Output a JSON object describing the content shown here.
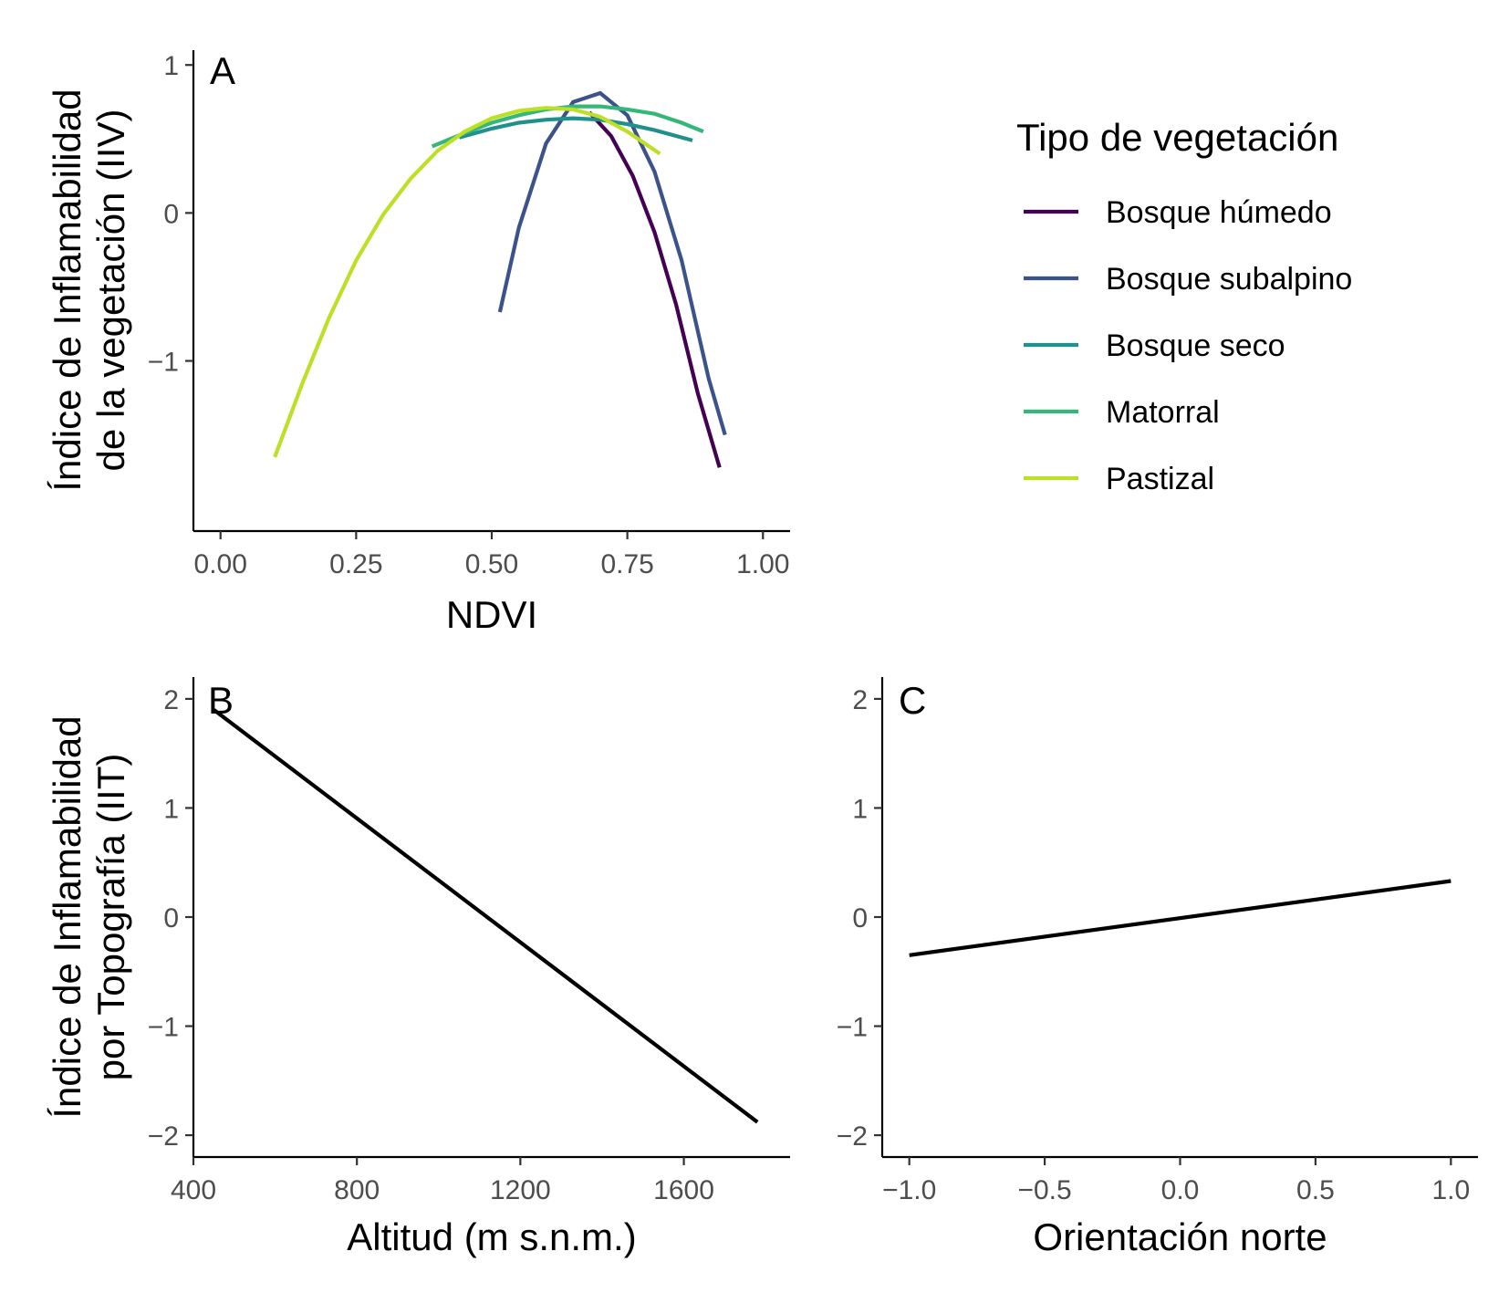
{
  "chart_data": [
    {
      "panel": "A",
      "type": "line",
      "xlabel": "NDVI",
      "ylabel_lines": [
        "Índice de Inflamabilidad",
        "de la vegetación (IIV)"
      ],
      "xlim": [
        -0.05,
        1.05
      ],
      "ylim": [
        -2.15,
        1.1
      ],
      "xticks": [
        0,
        0.25,
        0.5,
        0.75,
        1
      ],
      "xtick_labels": [
        "0.00",
        "0.25",
        "0.50",
        "0.75",
        "1.00"
      ],
      "yticks": [
        1,
        0,
        -1
      ],
      "ytick_labels": [
        "1",
        "0",
        "−1"
      ],
      "grid": false,
      "legend": {
        "title": "Tipo de vegetación",
        "placement": "right"
      },
      "series": [
        {
          "name": "Bosque húmedo",
          "color": "#440154",
          "x": [
            0.68,
            0.72,
            0.76,
            0.8,
            0.84,
            0.88,
            0.92
          ],
          "y": [
            0.68,
            0.52,
            0.25,
            -0.13,
            -0.62,
            -1.22,
            -1.72
          ]
        },
        {
          "name": "Bosque subalpino",
          "color": "#3b528b",
          "x": [
            0.515,
            0.55,
            0.6,
            0.65,
            0.7,
            0.75,
            0.8,
            0.85,
            0.9,
            0.93
          ],
          "y": [
            -0.67,
            -0.1,
            0.47,
            0.75,
            0.81,
            0.66,
            0.28,
            -0.32,
            -1.12,
            -1.5
          ]
        },
        {
          "name": "Bosque seco",
          "color": "#21908d",
          "x": [
            0.44,
            0.5,
            0.55,
            0.6,
            0.65,
            0.7,
            0.75,
            0.8,
            0.87
          ],
          "y": [
            0.51,
            0.57,
            0.61,
            0.63,
            0.64,
            0.63,
            0.6,
            0.56,
            0.49
          ]
        },
        {
          "name": "Matorral",
          "color": "#35b779",
          "x": [
            0.39,
            0.45,
            0.5,
            0.55,
            0.6,
            0.65,
            0.7,
            0.75,
            0.8,
            0.85,
            0.89
          ],
          "y": [
            0.45,
            0.54,
            0.61,
            0.66,
            0.7,
            0.72,
            0.72,
            0.7,
            0.67,
            0.61,
            0.55
          ]
        },
        {
          "name": "Pastizal",
          "color": "#bddf26",
          "x": [
            0.1,
            0.15,
            0.2,
            0.25,
            0.3,
            0.35,
            0.4,
            0.45,
            0.5,
            0.55,
            0.6,
            0.65,
            0.7,
            0.75,
            0.81
          ],
          "y": [
            -1.65,
            -1.16,
            -0.71,
            -0.32,
            -0.01,
            0.23,
            0.42,
            0.55,
            0.64,
            0.69,
            0.71,
            0.7,
            0.65,
            0.55,
            0.4
          ]
        }
      ]
    },
    {
      "panel": "B",
      "type": "line",
      "xlabel": "Altitud (m s.n.m.)",
      "ylabel_lines": [
        "Índice de Inflamabilidad",
        "por Topografía (IIT)"
      ],
      "xlim": [
        400,
        1860
      ],
      "ylim": [
        -2.2,
        2.2
      ],
      "xticks": [
        400,
        800,
        1200,
        1600
      ],
      "xtick_labels": [
        "400",
        "800",
        "1200",
        "1600"
      ],
      "yticks": [
        2,
        1,
        0,
        -1,
        -2
      ],
      "ytick_labels": [
        "2",
        "1",
        "0",
        "−1",
        "−2"
      ],
      "grid": false,
      "series": [
        {
          "color": "#000000",
          "x": [
            450,
            1780
          ],
          "y": [
            1.9,
            -1.88
          ]
        }
      ]
    },
    {
      "panel": "C",
      "type": "line",
      "xlabel": "Orientación norte",
      "ylabel_lines": [],
      "xlim": [
        -1.1,
        1.1
      ],
      "ylim": [
        -2.2,
        2.2
      ],
      "xticks": [
        -1,
        -0.5,
        0,
        0.5,
        1
      ],
      "xtick_labels": [
        "−1.0",
        "−0.5",
        "0.0",
        "0.5",
        "1.0"
      ],
      "yticks": [
        2,
        1,
        0,
        -1,
        -2
      ],
      "ytick_labels": [
        "2",
        "1",
        "0",
        "−1",
        "−2"
      ],
      "grid": false,
      "series": [
        {
          "color": "#000000",
          "x": [
            -1.0,
            1.0
          ],
          "y": [
            -0.35,
            0.33
          ]
        }
      ]
    }
  ]
}
